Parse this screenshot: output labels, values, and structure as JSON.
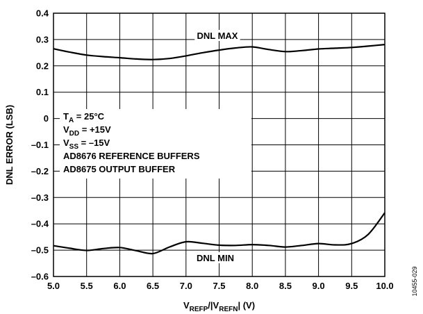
{
  "chart_data": {
    "type": "line",
    "xlabel": {
      "v": "V",
      "sub1": "REFP",
      "mid": "/|V",
      "sub2": "REFN",
      "end": "| (V)"
    },
    "ylabel": "DNL ERROR (LSB)",
    "xlim": [
      5.0,
      10.0
    ],
    "ylim": [
      -0.6,
      0.4
    ],
    "x_ticks": [
      "5.0",
      "5.5",
      "6.0",
      "6.5",
      "7.0",
      "7.5",
      "8.0",
      "8.5",
      "9.0",
      "9.5",
      "10.0"
    ],
    "y_ticks": [
      "0.4",
      "0.3",
      "0.2",
      "0.1",
      "0",
      "–0.1",
      "–0.2",
      "–0.3",
      "–0.4",
      "–0.5",
      "–0.6"
    ],
    "grid": true,
    "series": [
      {
        "name": "DNL MAX",
        "x": [
          5.0,
          5.25,
          5.5,
          5.75,
          6.0,
          6.25,
          6.5,
          6.75,
          7.0,
          7.25,
          7.5,
          7.75,
          8.0,
          8.25,
          8.5,
          8.75,
          9.0,
          9.25,
          9.5,
          9.75,
          10.0
        ],
        "y": [
          0.265,
          0.252,
          0.241,
          0.235,
          0.231,
          0.226,
          0.224,
          0.228,
          0.238,
          0.25,
          0.26,
          0.268,
          0.272,
          0.262,
          0.254,
          0.258,
          0.264,
          0.267,
          0.27,
          0.275,
          0.281
        ]
      },
      {
        "name": "DNL MIN",
        "x": [
          5.0,
          5.25,
          5.5,
          5.75,
          6.0,
          6.25,
          6.5,
          6.75,
          7.0,
          7.25,
          7.5,
          7.75,
          8.0,
          8.25,
          8.5,
          8.75,
          9.0,
          9.25,
          9.5,
          9.75,
          10.0
        ],
        "y": [
          -0.483,
          -0.493,
          -0.501,
          -0.494,
          -0.49,
          -0.502,
          -0.513,
          -0.488,
          -0.468,
          -0.474,
          -0.481,
          -0.482,
          -0.479,
          -0.482,
          -0.488,
          -0.482,
          -0.475,
          -0.48,
          -0.475,
          -0.44,
          -0.358
        ]
      }
    ],
    "annotations": {
      "max_label": "DNL MAX",
      "min_label": "DNL MIN",
      "conditions": [
        {
          "main": "T",
          "sub": "A",
          "rest": " = 25°C"
        },
        {
          "main": "V",
          "sub": "DD",
          "rest": " = +15V"
        },
        {
          "main": "V",
          "sub": "SS",
          "rest": " = –15V"
        },
        {
          "main": "AD8676 REFERENCE BUFFERS",
          "sub": "",
          "rest": ""
        },
        {
          "main": "AD8675 OUTPUT BUFFER",
          "sub": "",
          "rest": ""
        }
      ]
    },
    "figure_code": "10455-029",
    "line_color": "#000000",
    "grid_color": "#000000"
  }
}
